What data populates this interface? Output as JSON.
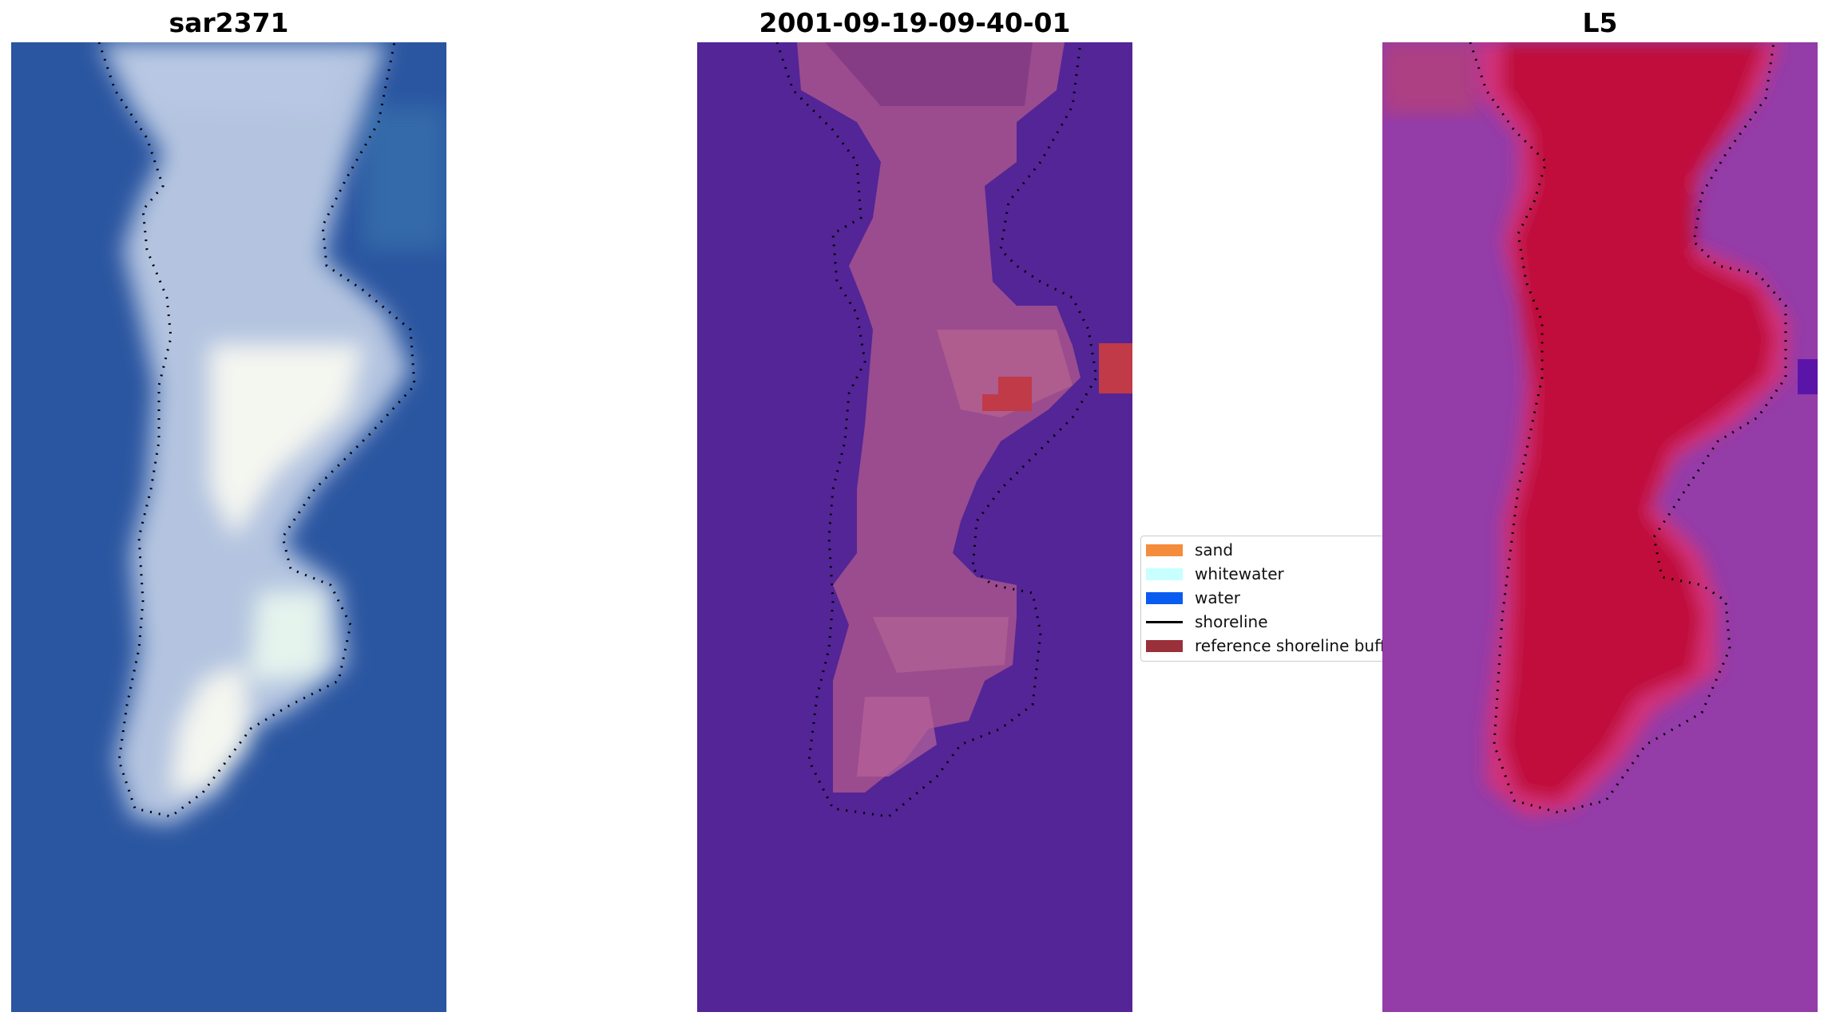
{
  "panels": [
    {
      "title": "sar2371",
      "view": "rgb"
    },
    {
      "title": "2001-09-19-09-40-01",
      "view": "classified"
    },
    {
      "title": "L5",
      "view": "index"
    }
  ],
  "legend": {
    "items": [
      {
        "label": "sand",
        "kind": "patch",
        "color": "#f58c3c"
      },
      {
        "label": "whitewater",
        "kind": "patch",
        "color": "#c8ffff"
      },
      {
        "label": "water",
        "kind": "patch",
        "color": "#0a5cf0"
      },
      {
        "label": "shoreline",
        "kind": "line",
        "color": "#000000"
      },
      {
        "label": "reference shoreline buffer",
        "kind": "patch",
        "color": "#99303a"
      }
    ]
  },
  "colors": {
    "rgb_water": "#2a55a0",
    "rgb_land": "#b4c4e0",
    "rgb_bright": "#f4f6f0",
    "classified_background": "#532596",
    "classified_land": "#9a4c8e",
    "classified_buffer": "#c03a48",
    "index_low": "#943ca8",
    "index_high": "#c00a3a",
    "index_edge": "#5a14a8",
    "shoreline": "#000000"
  }
}
